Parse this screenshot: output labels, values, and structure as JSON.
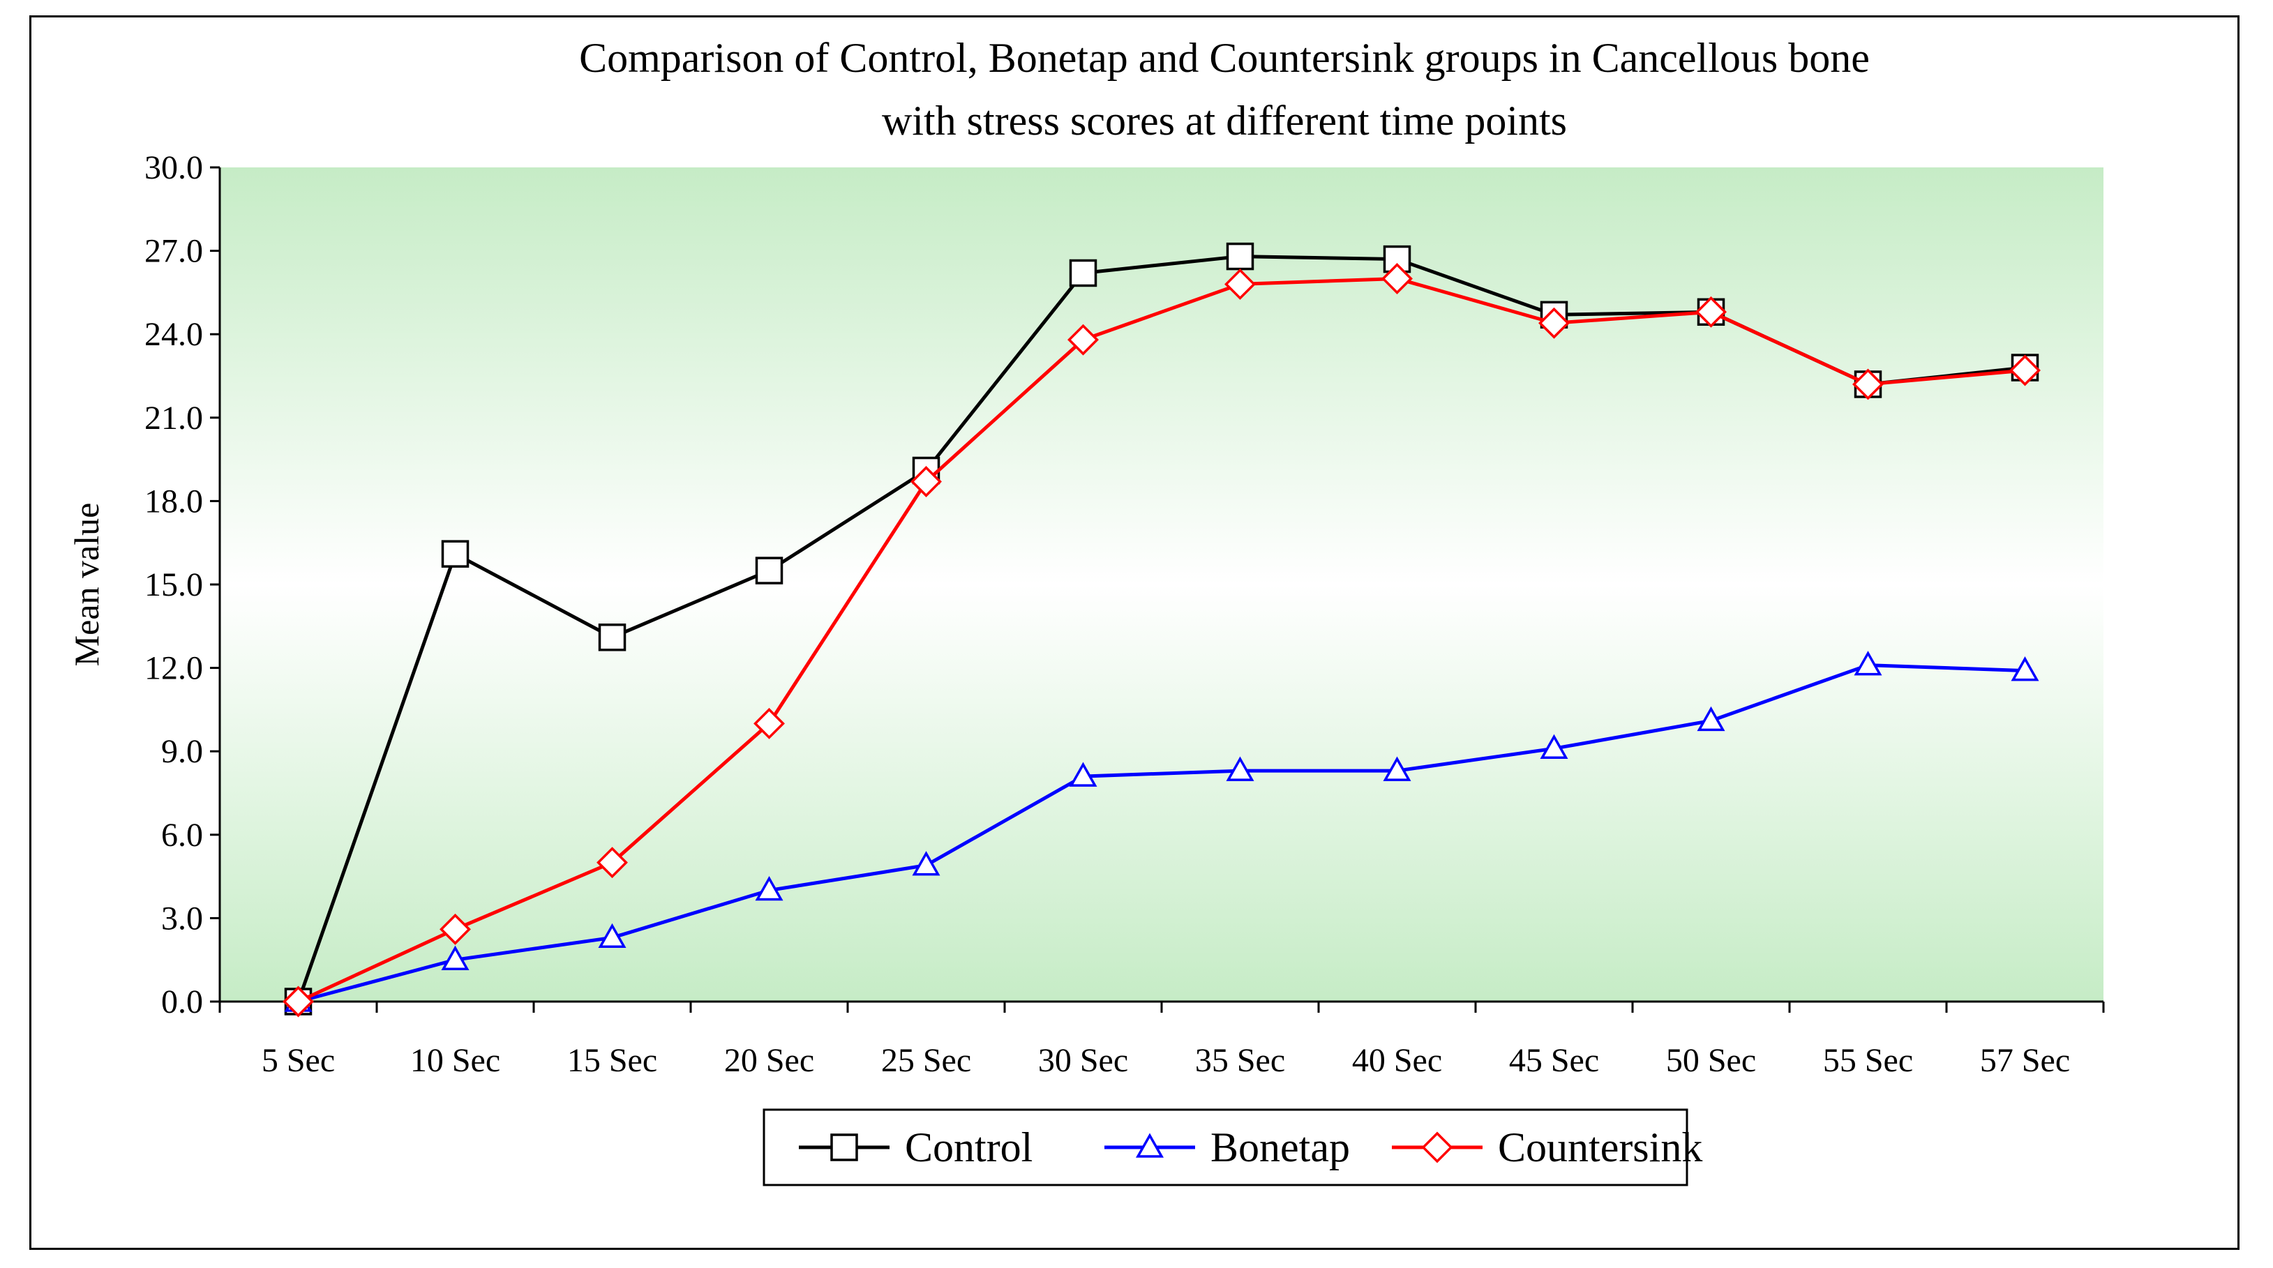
{
  "chart_data": {
    "type": "line",
    "title_lines": [
      "Comparison of Control, Bonetap and Countersink groups in Cancellous bone",
      "with stress scores at different time points"
    ],
    "xlabel": "",
    "ylabel": "Mean value",
    "categories": [
      "5 Sec",
      "10 Sec",
      "15 Sec",
      "20 Sec",
      "25 Sec",
      "30 Sec",
      "35 Sec",
      "40 Sec",
      "45 Sec",
      "50 Sec",
      "55 Sec",
      "57 Sec"
    ],
    "ylim": [
      0,
      30
    ],
    "yticks": [
      "0.0",
      "3.0",
      "6.0",
      "9.0",
      "12.0",
      "15.0",
      "18.0",
      "21.0",
      "24.0",
      "27.0",
      "30.0"
    ],
    "grid": false,
    "legend_position": "bottom",
    "plot_background": "green-gradient",
    "series": [
      {
        "name": "Control",
        "color": "#000000",
        "marker": "square",
        "values": [
          0.0,
          16.1,
          13.1,
          15.5,
          19.1,
          26.2,
          26.8,
          26.7,
          24.7,
          24.8,
          22.2,
          22.8
        ]
      },
      {
        "name": "Bonetap",
        "color": "#0000ff",
        "marker": "triangle",
        "values": [
          0.0,
          1.5,
          2.3,
          4.0,
          4.9,
          8.1,
          8.3,
          8.3,
          9.1,
          10.1,
          12.1,
          11.9
        ]
      },
      {
        "name": "Countersink",
        "color": "#ff0000",
        "marker": "diamond",
        "values": [
          0.0,
          2.6,
          5.0,
          10.0,
          18.7,
          23.8,
          25.8,
          26.0,
          24.4,
          24.8,
          22.2,
          22.7
        ]
      }
    ]
  }
}
